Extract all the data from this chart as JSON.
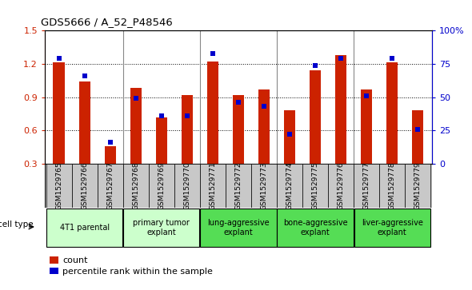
{
  "title": "GDS5666 / A_52_P48546",
  "samples": [
    "GSM1529765",
    "GSM1529766",
    "GSM1529767",
    "GSM1529768",
    "GSM1529769",
    "GSM1529770",
    "GSM1529771",
    "GSM1529772",
    "GSM1529773",
    "GSM1529774",
    "GSM1529775",
    "GSM1529776",
    "GSM1529777",
    "GSM1529778",
    "GSM1529779"
  ],
  "counts": [
    1.21,
    1.04,
    0.46,
    0.98,
    0.72,
    0.92,
    1.22,
    0.92,
    0.97,
    0.78,
    1.14,
    1.28,
    0.97,
    1.21,
    0.78
  ],
  "percentile_ranks": [
    79,
    66,
    16,
    49,
    36,
    36,
    83,
    46,
    43,
    22,
    74,
    79,
    51,
    79,
    26
  ],
  "ylim_left": [
    0.3,
    1.5
  ],
  "ylim_right": [
    0,
    100
  ],
  "yticks_left": [
    0.3,
    0.6,
    0.9,
    1.2,
    1.5
  ],
  "yticks_right": [
    0,
    25,
    50,
    75,
    100
  ],
  "bar_color": "#CC2200",
  "dot_color": "#0000CC",
  "cell_type_groups": [
    {
      "label": "4T1 parental",
      "start": 0,
      "end": 2,
      "color": "#CCFFCC"
    },
    {
      "label": "primary tumor\nexplant",
      "start": 3,
      "end": 5,
      "color": "#CCFFCC"
    },
    {
      "label": "lung-aggressive\nexplant",
      "start": 6,
      "end": 8,
      "color": "#55DD55"
    },
    {
      "label": "bone-aggressive\nexplant",
      "start": 9,
      "end": 11,
      "color": "#55DD55"
    },
    {
      "label": "liver-aggressive\nexplant",
      "start": 12,
      "end": 14,
      "color": "#55DD55"
    }
  ],
  "legend_count_label": "count",
  "legend_pct_label": "percentile rank within the sample",
  "cell_type_label": "cell type",
  "axis_color_left": "#CC2200",
  "axis_color_right": "#0000CC",
  "bar_width": 0.45,
  "tick_bg_color": "#C8C8C8",
  "group_boundary_color": "#888888"
}
